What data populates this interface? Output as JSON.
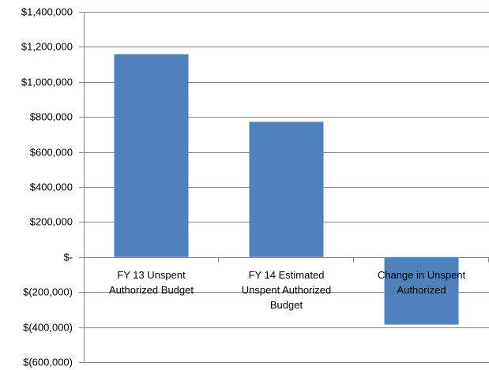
{
  "chart_data": {
    "type": "bar",
    "categories": [
      [
        "FY 13 Unspent",
        "Authorized Budget"
      ],
      [
        "FY 14 Estimated",
        "Unspent Authorized",
        "Budget"
      ],
      [
        "Change in Unspent",
        "Authorized"
      ]
    ],
    "values": [
      1158000,
      772000,
      -386000
    ],
    "ylim": [
      -600000,
      1400000
    ],
    "yticks": [
      1400000,
      1200000,
      1000000,
      800000,
      600000,
      400000,
      200000,
      0,
      -200000,
      -400000,
      -600000
    ],
    "ytick_labels": [
      "$1,400,000",
      "$1,200,000",
      "$1,000,000",
      "$800,000",
      "$600,000",
      "$400,000",
      "$200,000",
      "$-",
      "$(200,000)",
      "$(400,000)",
      "$(600,000)"
    ],
    "grid": true,
    "legend": "none",
    "colors": {
      "bar": "#4f81bd",
      "grid": "#868686",
      "axis": "#868686"
    }
  }
}
